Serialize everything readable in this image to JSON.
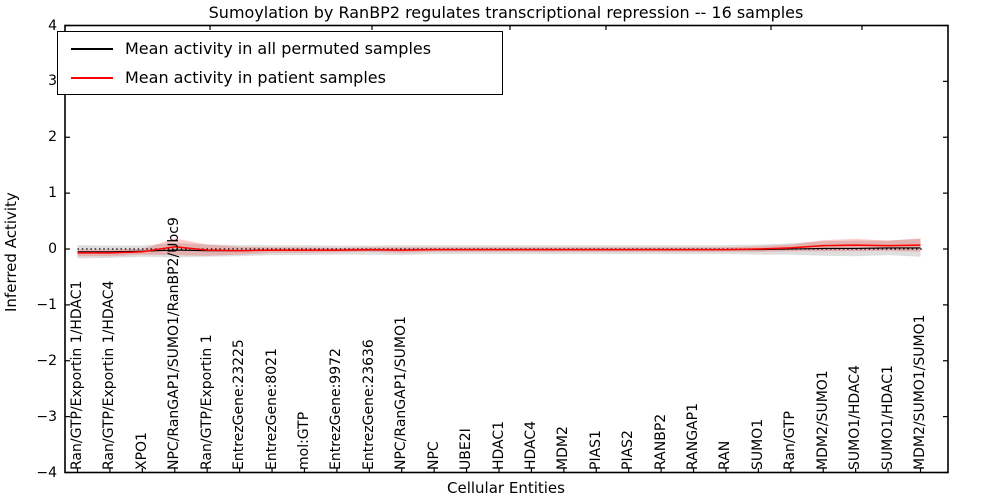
{
  "chart_data": {
    "type": "line",
    "title": "Sumoylation by RanBP2 regulates transcriptional repression -- 16 samples",
    "xlabel": "Cellular Entities",
    "ylabel": "Inferred Activity",
    "ylim": [
      -4,
      4
    ],
    "ytick_labels": [
      "4",
      "3",
      "2",
      "1",
      "0",
      "−1",
      "−2",
      "−3",
      "−4"
    ],
    "ytick_values": [
      4,
      3,
      2,
      1,
      0,
      -1,
      -2,
      -3,
      -4
    ],
    "grid": false,
    "legend_position": "upper left",
    "categories": [
      "Ran/GTP/Exportin 1/HDAC1",
      "Ran/GTP/Exportin 1/HDAC4",
      "XPO1",
      "NPC/RanGAP1/SUMO1/RanBP2/Ubc9",
      "Ran/GTP/Exportin 1",
      "EntrezGene:23225",
      "EntrezGene:8021",
      "mol:GTP",
      "EntrezGene:9972",
      "EntrezGene:23636",
      "NPC/RanGAP1/SUMO1",
      "NPC",
      "UBE2I",
      "HDAC1",
      "HDAC4",
      "MDM2",
      "PIAS1",
      "PIAS2",
      "RANBP2",
      "RANGAP1",
      "RAN",
      "SUMO1",
      "Ran/GTP",
      "MDM2/SUMO1",
      "SUMO1/HDAC4",
      "SUMO1/HDAC1",
      "MDM2/SUMO1/SUMO1"
    ],
    "legend": [
      {
        "label": "Mean activity in all permuted samples",
        "color": "#000000"
      },
      {
        "label": "Mean activity in patient samples",
        "color": "#ff0000"
      }
    ],
    "zero_line_value": 0,
    "series": [
      {
        "name": "Mean activity in all permuted samples",
        "color": "#000000",
        "values": [
          -0.05,
          -0.05,
          -0.04,
          -0.02,
          -0.03,
          -0.03,
          -0.02,
          -0.02,
          -0.02,
          -0.02,
          -0.02,
          -0.01,
          -0.01,
          -0.01,
          -0.01,
          -0.01,
          -0.01,
          -0.01,
          -0.01,
          -0.01,
          -0.01,
          -0.01,
          0.0,
          0.01,
          0.01,
          0.02,
          0.02
        ],
        "band_half_width": [
          0.12,
          0.11,
          0.1,
          0.13,
          0.11,
          0.1,
          0.09,
          0.09,
          0.08,
          0.08,
          0.09,
          0.08,
          0.08,
          0.08,
          0.08,
          0.08,
          0.08,
          0.08,
          0.08,
          0.08,
          0.08,
          0.09,
          0.1,
          0.13,
          0.14,
          0.13,
          0.16
        ],
        "band_color": "#999999",
        "band_opacity": 0.32
      },
      {
        "name": "Mean activity in patient samples",
        "color": "#ff0000",
        "values": [
          -0.07,
          -0.07,
          -0.05,
          0.04,
          -0.02,
          -0.03,
          -0.02,
          -0.02,
          -0.02,
          -0.01,
          -0.02,
          -0.01,
          -0.01,
          -0.01,
          -0.01,
          -0.01,
          -0.01,
          -0.01,
          -0.01,
          -0.01,
          -0.01,
          0.0,
          0.02,
          0.06,
          0.07,
          0.06,
          0.07
        ],
        "band_half_width": [
          0.06,
          0.06,
          0.05,
          0.15,
          0.1,
          0.07,
          0.05,
          0.05,
          0.04,
          0.04,
          0.05,
          0.04,
          0.04,
          0.04,
          0.04,
          0.04,
          0.04,
          0.04,
          0.04,
          0.04,
          0.04,
          0.05,
          0.06,
          0.1,
          0.11,
          0.09,
          0.12
        ],
        "band_color": "#ff0000",
        "band_opacity": 0.2
      }
    ]
  }
}
